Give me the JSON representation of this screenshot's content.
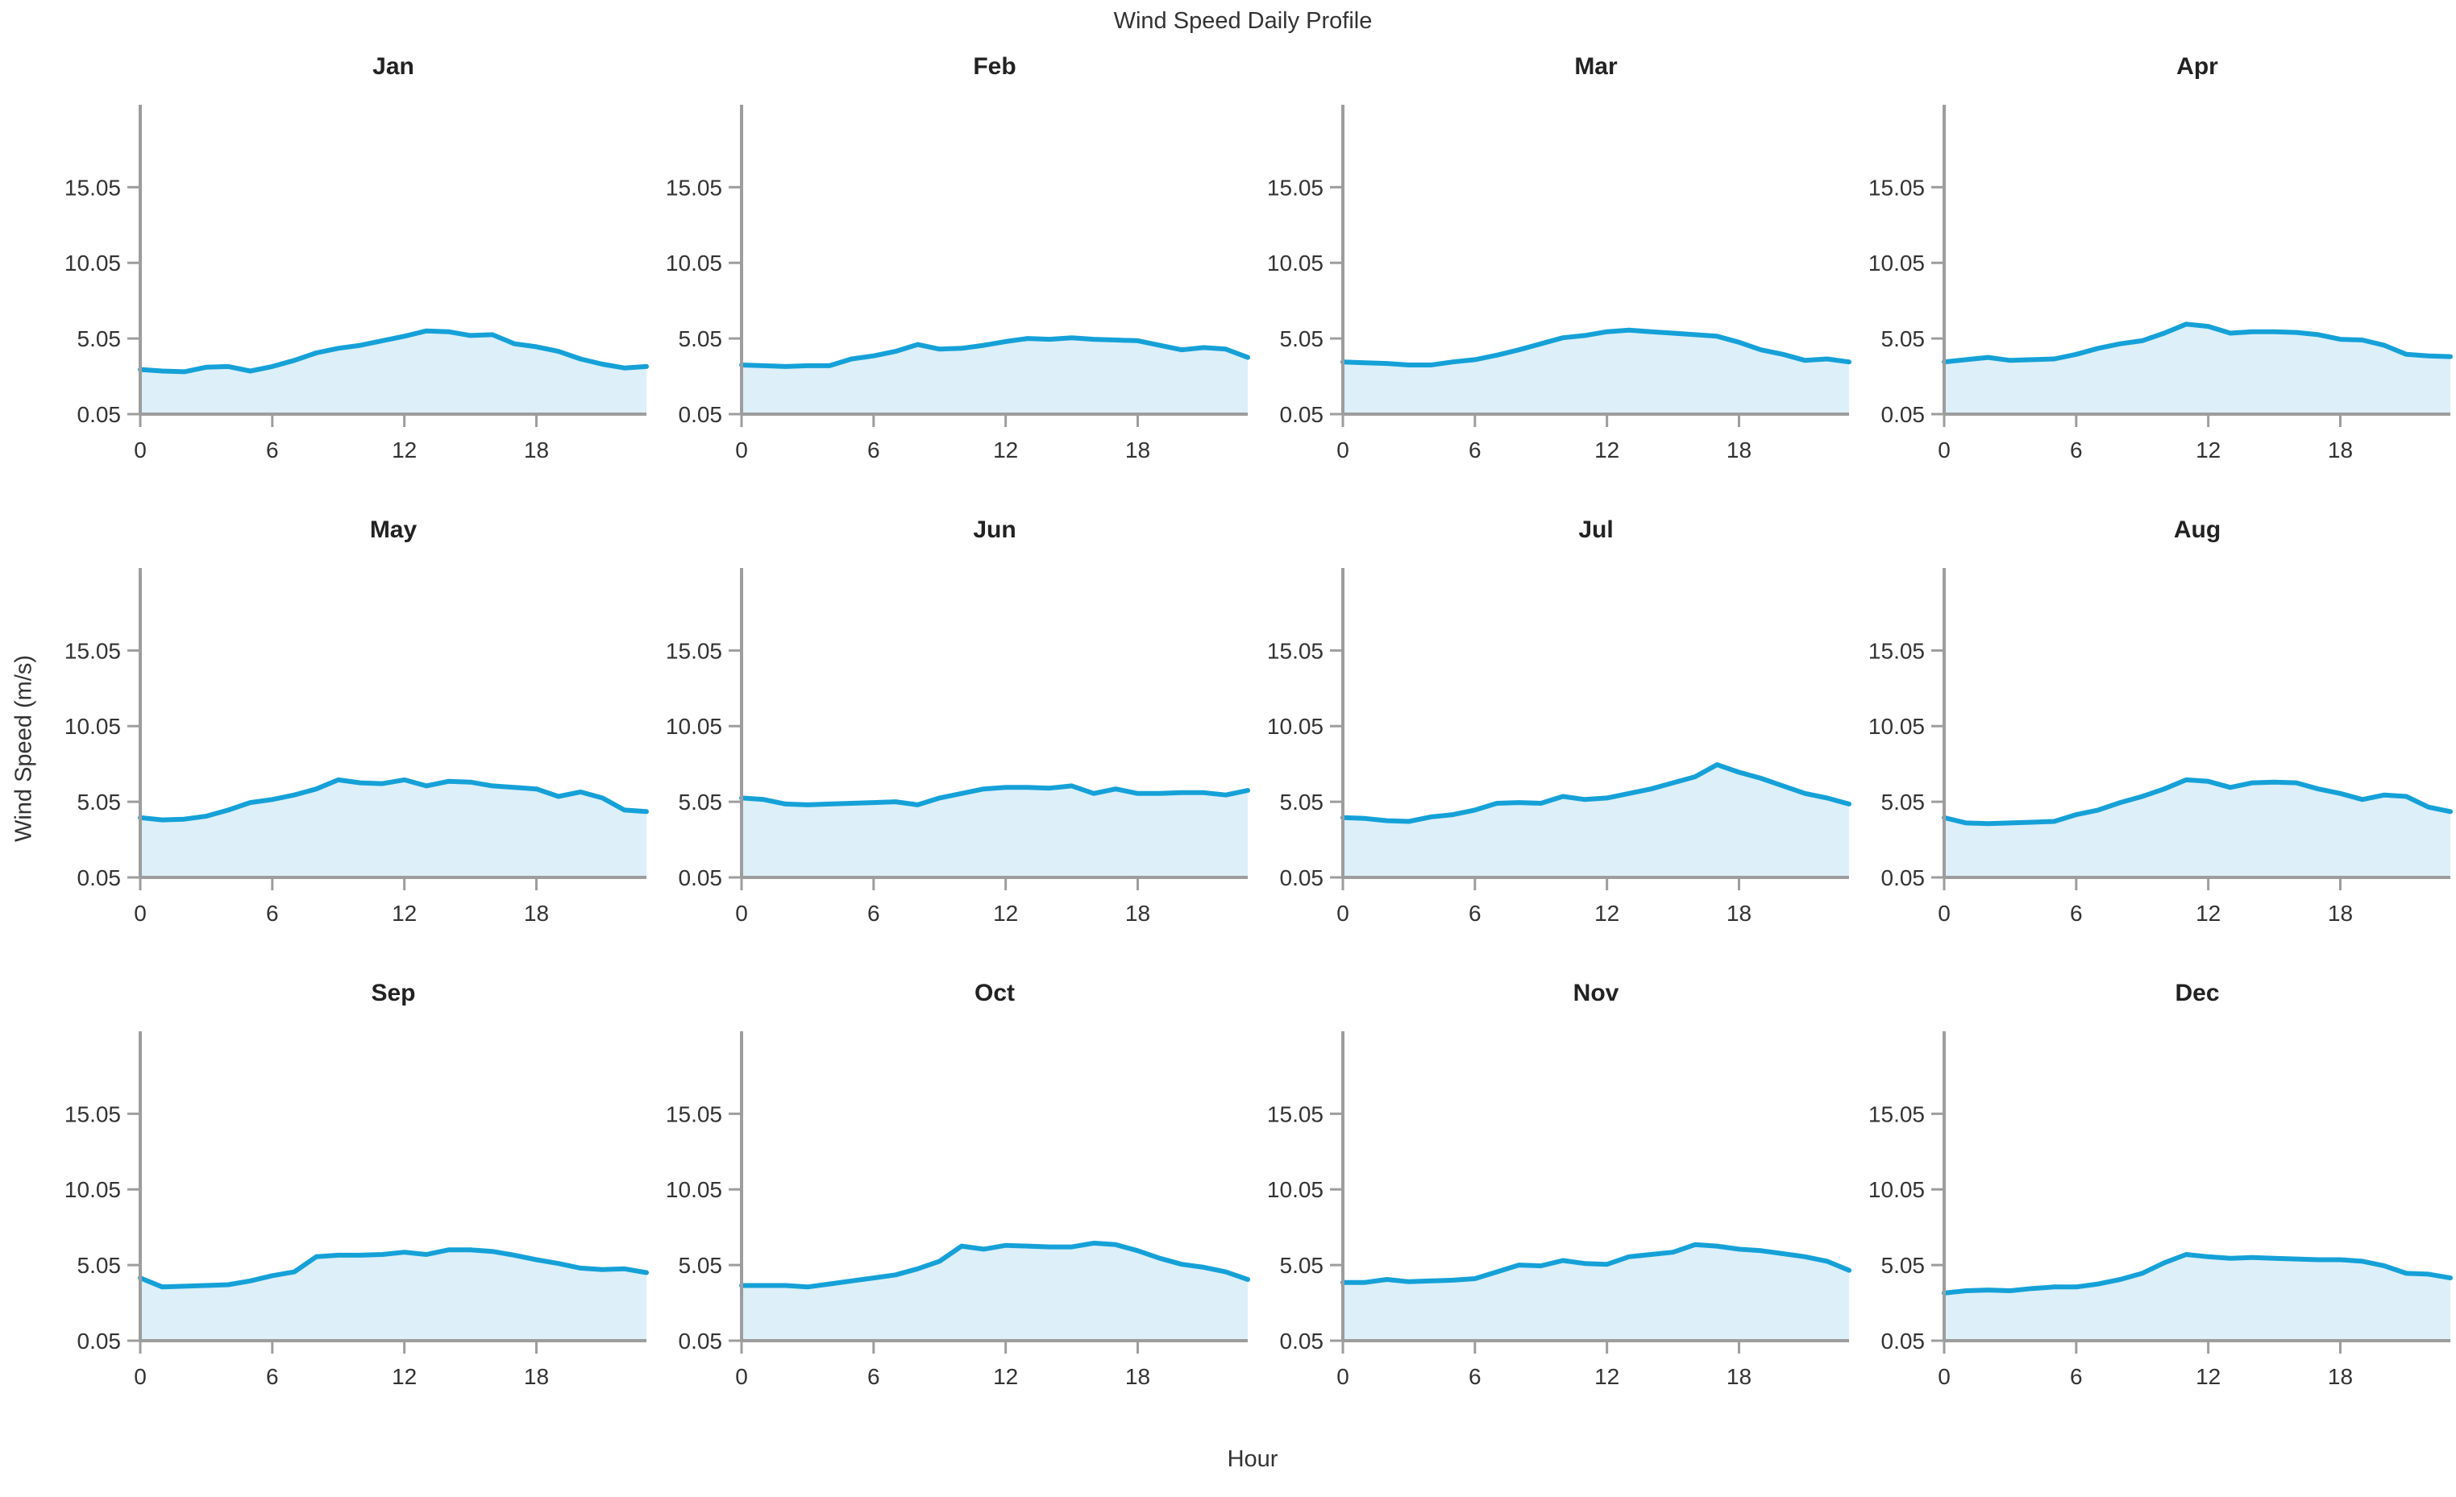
{
  "figure": {
    "title": "Wind Speed Daily Profile",
    "xlabel": "Hour",
    "ylabel": "Wind Speed (m/s)"
  },
  "chart_data": {
    "type": "area",
    "title": "Wind Speed Daily Profile",
    "xlabel": "Hour",
    "ylabel": "Wind Speed (m/s)",
    "layout": {
      "rows": 3,
      "cols": 4,
      "grid": false,
      "legend": "none"
    },
    "x": [
      0,
      1,
      2,
      3,
      4,
      5,
      6,
      7,
      8,
      9,
      10,
      11,
      12,
      13,
      14,
      15,
      16,
      17,
      18,
      19,
      20,
      21,
      22,
      23
    ],
    "xticks": [
      0,
      6,
      12,
      18
    ],
    "yticks": [
      0.05,
      5.05,
      10.05,
      15.05
    ],
    "xlim": [
      0,
      23
    ],
    "ylim": [
      0.05,
      20.5
    ],
    "line_color": "#15a1d8",
    "fill_color": "#ddeff8",
    "axis_color": "#9d9d9d",
    "text_color": "#333333",
    "series": [
      {
        "name": "Jan",
        "values": [
          3.0,
          2.9,
          2.85,
          3.15,
          3.2,
          2.9,
          3.2,
          3.6,
          4.1,
          4.4,
          4.6,
          4.9,
          5.2,
          5.55,
          5.5,
          5.25,
          5.3,
          4.7,
          4.5,
          4.2,
          3.7,
          3.35,
          3.1,
          3.2
        ]
      },
      {
        "name": "Feb",
        "values": [
          3.3,
          3.25,
          3.2,
          3.25,
          3.25,
          3.7,
          3.9,
          4.2,
          4.65,
          4.35,
          4.4,
          4.6,
          4.85,
          5.05,
          5.0,
          5.1,
          5.0,
          4.95,
          4.9,
          4.6,
          4.3,
          4.45,
          4.35,
          3.8
        ]
      },
      {
        "name": "Mar",
        "values": [
          3.5,
          3.45,
          3.4,
          3.3,
          3.3,
          3.5,
          3.65,
          3.95,
          4.3,
          4.7,
          5.1,
          5.25,
          5.5,
          5.6,
          5.5,
          5.4,
          5.3,
          5.2,
          4.8,
          4.3,
          4.0,
          3.6,
          3.7,
          3.5
        ]
      },
      {
        "name": "Apr",
        "values": [
          3.5,
          3.65,
          3.8,
          3.6,
          3.65,
          3.7,
          4.0,
          4.4,
          4.7,
          4.9,
          5.4,
          6.0,
          5.85,
          5.4,
          5.5,
          5.5,
          5.45,
          5.3,
          5.0,
          4.95,
          4.6,
          4.0,
          3.9,
          3.85
        ]
      },
      {
        "name": "May",
        "values": [
          4.0,
          3.85,
          3.9,
          4.1,
          4.5,
          5.0,
          5.2,
          5.5,
          5.9,
          6.5,
          6.3,
          6.25,
          6.5,
          6.1,
          6.4,
          6.35,
          6.1,
          6.0,
          5.9,
          5.4,
          5.7,
          5.3,
          4.5,
          4.4
        ]
      },
      {
        "name": "Jun",
        "values": [
          5.3,
          5.2,
          4.9,
          4.85,
          4.9,
          4.95,
          5.0,
          5.05,
          4.85,
          5.3,
          5.6,
          5.9,
          6.0,
          6.0,
          5.95,
          6.1,
          5.6,
          5.9,
          5.6,
          5.6,
          5.65,
          5.65,
          5.5,
          5.8
        ]
      },
      {
        "name": "Jul",
        "values": [
          4.0,
          3.95,
          3.8,
          3.75,
          4.05,
          4.2,
          4.5,
          4.95,
          5.0,
          4.95,
          5.4,
          5.2,
          5.3,
          5.6,
          5.9,
          6.3,
          6.7,
          7.5,
          7.0,
          6.6,
          6.1,
          5.6,
          5.3,
          4.9
        ]
      },
      {
        "name": "Aug",
        "values": [
          4.0,
          3.65,
          3.6,
          3.65,
          3.7,
          3.75,
          4.2,
          4.5,
          5.0,
          5.4,
          5.9,
          6.5,
          6.4,
          6.0,
          6.3,
          6.35,
          6.3,
          5.9,
          5.6,
          5.2,
          5.5,
          5.4,
          4.7,
          4.4
        ]
      },
      {
        "name": "Sep",
        "values": [
          4.2,
          3.6,
          3.65,
          3.7,
          3.75,
          4.0,
          4.35,
          4.6,
          5.6,
          5.7,
          5.7,
          5.75,
          5.9,
          5.75,
          6.05,
          6.05,
          5.95,
          5.7,
          5.4,
          5.15,
          4.85,
          4.75,
          4.8,
          4.55
        ]
      },
      {
        "name": "Oct",
        "values": [
          3.7,
          3.7,
          3.7,
          3.6,
          3.8,
          4.0,
          4.2,
          4.4,
          4.8,
          5.3,
          6.3,
          6.1,
          6.35,
          6.3,
          6.25,
          6.25,
          6.5,
          6.4,
          6.0,
          5.5,
          5.1,
          4.9,
          4.6,
          4.1
        ]
      },
      {
        "name": "Nov",
        "values": [
          3.9,
          3.9,
          4.1,
          3.95,
          4.0,
          4.05,
          4.15,
          4.6,
          5.05,
          5.0,
          5.35,
          5.15,
          5.1,
          5.6,
          5.75,
          5.9,
          6.4,
          6.3,
          6.1,
          6.0,
          5.8,
          5.6,
          5.3,
          4.7
        ]
      },
      {
        "name": "Dec",
        "values": [
          3.2,
          3.35,
          3.4,
          3.35,
          3.5,
          3.6,
          3.6,
          3.8,
          4.1,
          4.5,
          5.2,
          5.75,
          5.6,
          5.5,
          5.55,
          5.5,
          5.45,
          5.4,
          5.4,
          5.3,
          5.0,
          4.5,
          4.45,
          4.2
        ]
      }
    ]
  }
}
